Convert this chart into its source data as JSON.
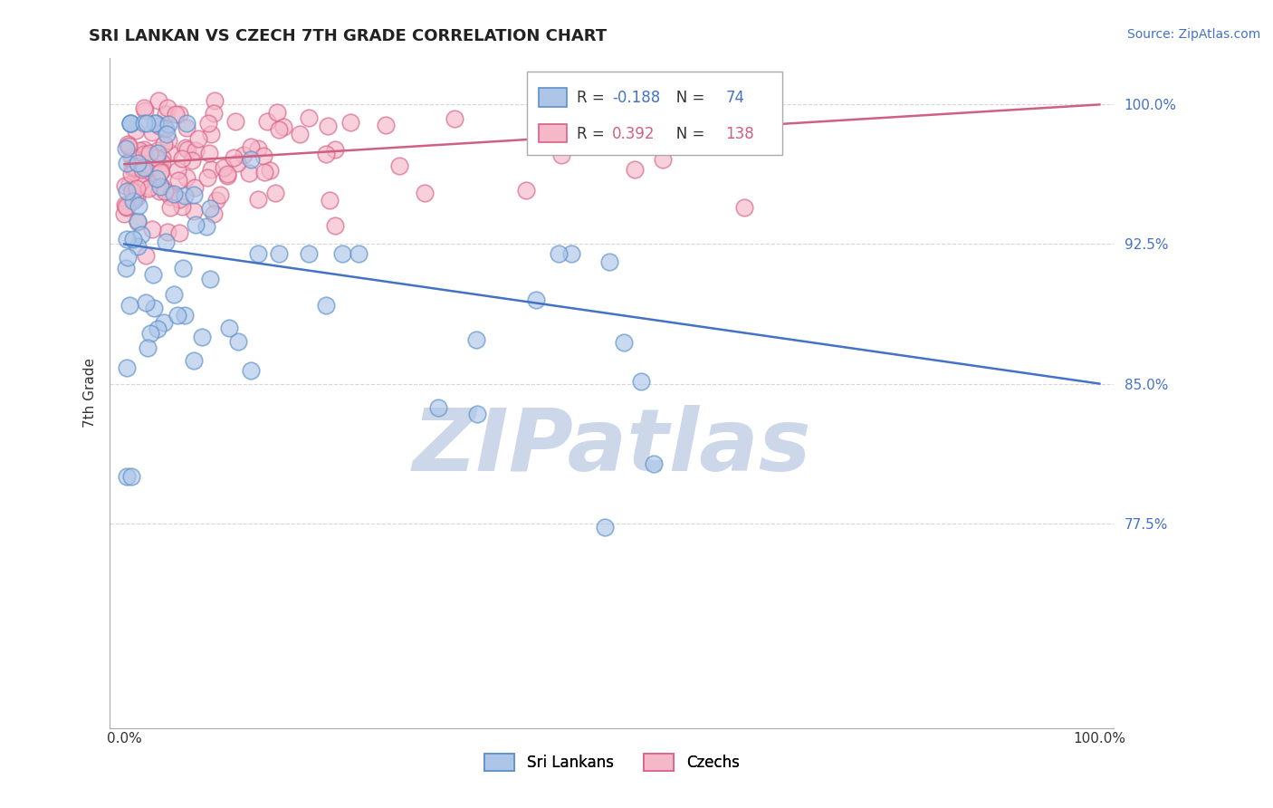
{
  "title": "SRI LANKAN VS CZECH 7TH GRADE CORRELATION CHART",
  "source": "Source: ZipAtlas.com",
  "ylabel": "7th Grade",
  "ylim": [
    0.665,
    1.025
  ],
  "xlim": [
    -0.015,
    1.015
  ],
  "sri_lankan_color": "#adc6e8",
  "sri_lankan_edge": "#5b8fc9",
  "czech_color": "#f5b8c8",
  "czech_edge": "#d96088",
  "sri_lankan_R": -0.188,
  "sri_lankan_N": 74,
  "czech_R": 0.392,
  "czech_N": 138,
  "sri_lankan_line_color": "#4472c4",
  "czech_line_color": "#d06080",
  "background_color": "#ffffff",
  "grid_color": "#cccccc",
  "title_fontsize": 13,
  "watermark": "ZIPatlas",
  "watermark_color": "#ccd8ea",
  "sri_lankans_label": "Sri Lankans",
  "czechs_label": "Czechs",
  "sl_line_x0": 0.0,
  "sl_line_y0": 0.925,
  "sl_line_x1": 1.0,
  "sl_line_y1": 0.85,
  "cz_line_x0": 0.0,
  "cz_line_y0": 0.968,
  "cz_line_x1": 1.0,
  "cz_line_y1": 1.0,
  "ytick_vals": [
    0.775,
    0.85,
    0.925,
    1.0
  ],
  "ytick_labels": [
    "77.5%",
    "85.0%",
    "92.5%",
    "100.0%"
  ]
}
